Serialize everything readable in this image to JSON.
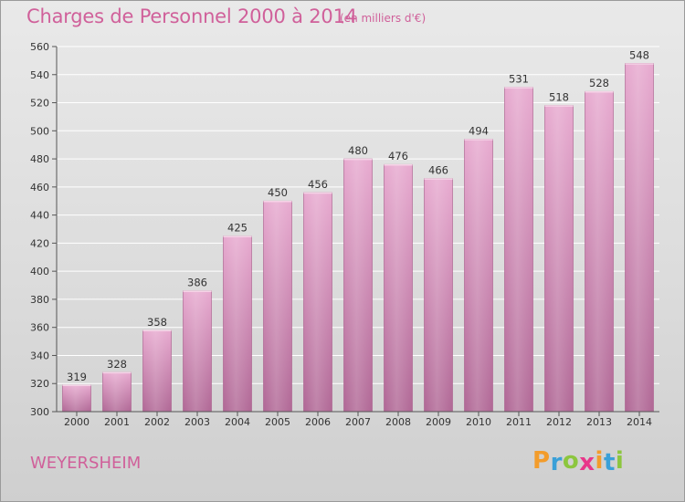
{
  "chart_data": {
    "type": "bar",
    "title": "Charges de Personnel 2000 à 2014",
    "subtitle": "(en milliers d'€)",
    "categories": [
      "2000",
      "2001",
      "2002",
      "2003",
      "2004",
      "2005",
      "2006",
      "2007",
      "2008",
      "2009",
      "2010",
      "2011",
      "2012",
      "2013",
      "2014"
    ],
    "values": [
      319,
      328,
      358,
      386,
      425,
      450,
      456,
      480,
      476,
      466,
      494,
      531,
      518,
      528,
      548
    ],
    "ylim": [
      300,
      560
    ],
    "yticks": [
      300,
      320,
      340,
      360,
      380,
      400,
      420,
      440,
      460,
      480,
      500,
      520,
      540,
      560
    ],
    "xlabel": "",
    "ylabel": "",
    "grid": true,
    "bar_color": "#d98dba"
  },
  "footer": {
    "commune": "WEYERSHEIM",
    "brand_letters": [
      "P",
      "r",
      "o",
      "x",
      "i",
      "t",
      "i"
    ],
    "brand_colors": [
      "#f39c2b",
      "#3aa0d8",
      "#8cc63e",
      "#e8378a",
      "#f39c2b",
      "#3aa0d8",
      "#8cc63e"
    ]
  },
  "colors": {
    "accent": "#d0609a",
    "grid": "#ffffff"
  }
}
